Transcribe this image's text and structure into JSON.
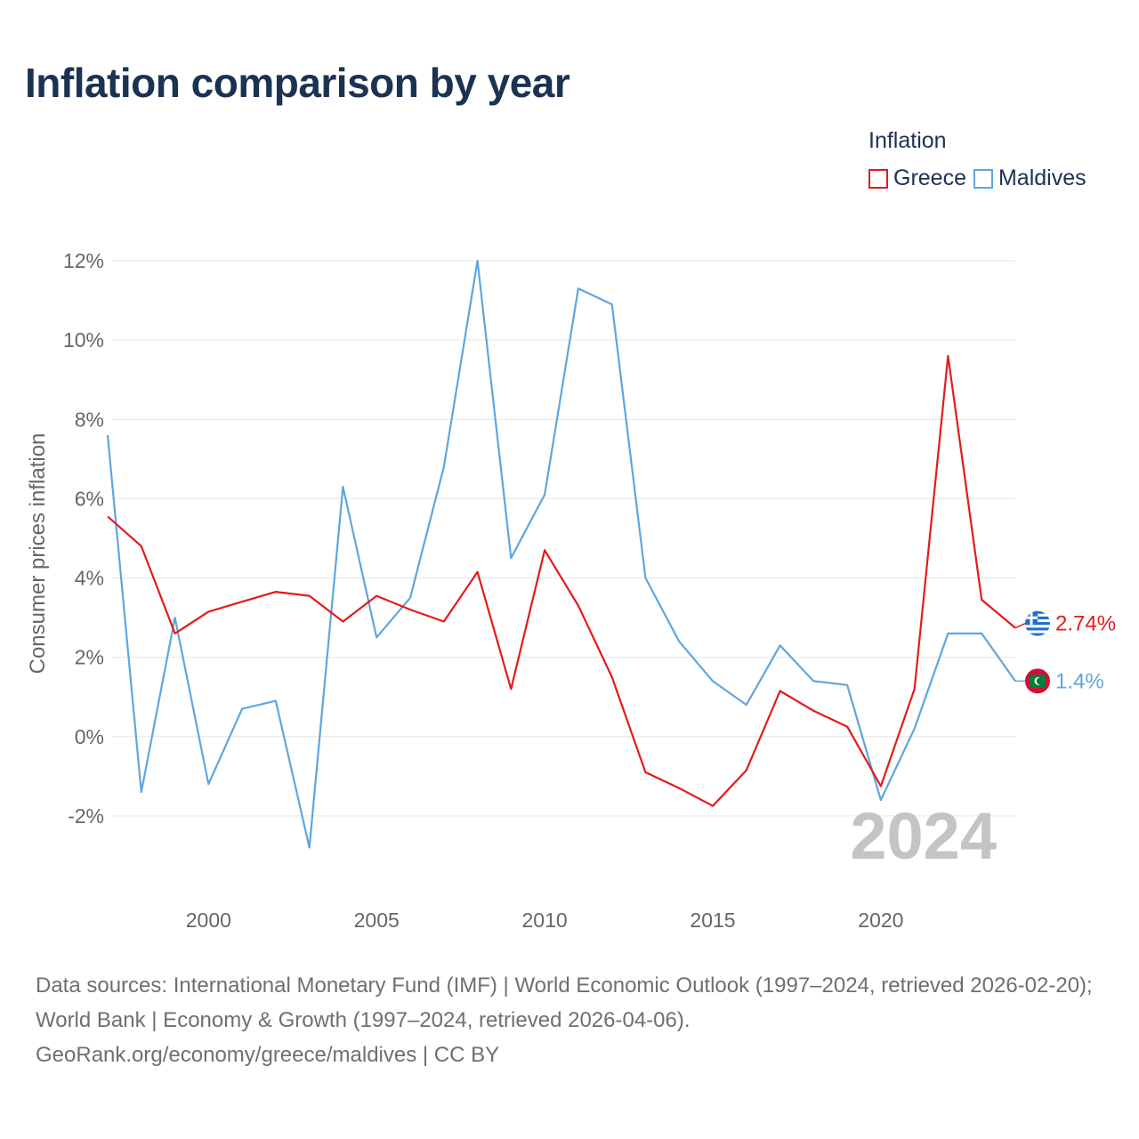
{
  "title": "Inflation comparison by year",
  "legend": {
    "title": "Inflation",
    "items": [
      {
        "label": "Greece",
        "color": "#e41a1c"
      },
      {
        "label": "Maldives",
        "color": "#5ea6e0"
      }
    ]
  },
  "chart_data": {
    "type": "line",
    "title": "Inflation comparison by year",
    "xlabel": "",
    "ylabel": "Consumer prices inflation",
    "xlim": [
      1997,
      2024
    ],
    "ylim": [
      -4,
      12
    ],
    "yticks": [
      -2,
      0,
      2,
      4,
      6,
      8,
      10,
      12
    ],
    "ytick_labels": [
      "-2%",
      "0%",
      "2%",
      "4%",
      "6%",
      "8%",
      "10%",
      "12%"
    ],
    "xticks": [
      2000,
      2005,
      2010,
      2015,
      2020
    ],
    "xtick_labels": [
      "2000",
      "2005",
      "2010",
      "2015",
      "2020"
    ],
    "grid": true,
    "legend_position": "top-right",
    "year_label": "2024",
    "x": [
      1997,
      1998,
      1999,
      2000,
      2001,
      2002,
      2003,
      2004,
      2005,
      2006,
      2007,
      2008,
      2009,
      2010,
      2011,
      2012,
      2013,
      2014,
      2015,
      2016,
      2017,
      2018,
      2019,
      2020,
      2021,
      2022,
      2023,
      2024
    ],
    "series": [
      {
        "name": "Greece",
        "color": "#e41a1c",
        "end_label": "2.74%",
        "values": [
          5.55,
          4.8,
          2.6,
          3.15,
          3.4,
          3.65,
          3.55,
          2.9,
          3.55,
          3.2,
          2.9,
          4.15,
          1.2,
          4.7,
          3.3,
          1.5,
          -0.9,
          -1.3,
          -1.75,
          -0.85,
          1.15,
          0.65,
          0.25,
          -1.25,
          1.2,
          9.6,
          3.45,
          2.74
        ]
      },
      {
        "name": "Maldives",
        "color": "#5ea6e0",
        "end_label": "1.4%",
        "values": [
          7.6,
          -1.4,
          3.0,
          -1.2,
          0.7,
          0.9,
          -2.8,
          6.3,
          2.5,
          3.5,
          6.8,
          12.0,
          4.5,
          6.1,
          11.3,
          10.9,
          4.0,
          2.4,
          1.4,
          0.8,
          2.3,
          1.4,
          1.3,
          -1.6,
          0.2,
          2.6,
          2.6,
          1.4
        ]
      }
    ]
  },
  "footer": {
    "line1": "Data sources: International Monetary Fund (IMF) | World Economic Outlook (1997–2024, retrieved 2026-02-20); World Bank | Economy & Growth (1997–2024, retrieved 2026-04-06).",
    "line2": "GeoRank.org/economy/greece/maldives | CC BY"
  }
}
